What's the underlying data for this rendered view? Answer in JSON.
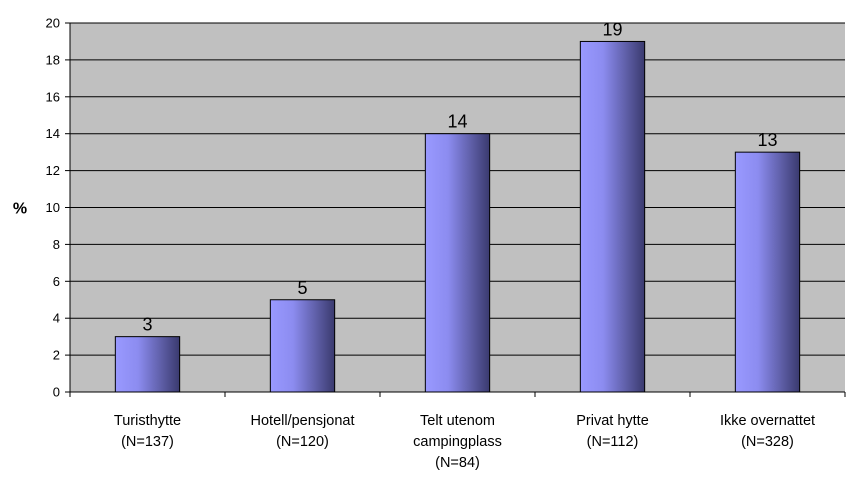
{
  "chart_data": {
    "type": "bar",
    "title": "",
    "xlabel": "",
    "ylabel": "%",
    "ylim": [
      0,
      20
    ],
    "ytick_step": 2,
    "grid": true,
    "legend": "none",
    "categories": [
      [
        "Turisthytte",
        "(N=137)"
      ],
      [
        "Hotell/pensjonat",
        "(N=120)"
      ],
      [
        "Telt utenom",
        "campingplass",
        "(N=84)"
      ],
      [
        "Privat hytte",
        "(N=112)"
      ],
      [
        "Ikke overnattet",
        "(N=328)"
      ]
    ],
    "values": [
      3,
      5,
      14,
      19,
      13
    ],
    "colors": {
      "plot_background": "#c0c0c0",
      "bar_light": "#9999ff",
      "bar_dark": "#3a3a6e",
      "grid": "#000000"
    }
  }
}
